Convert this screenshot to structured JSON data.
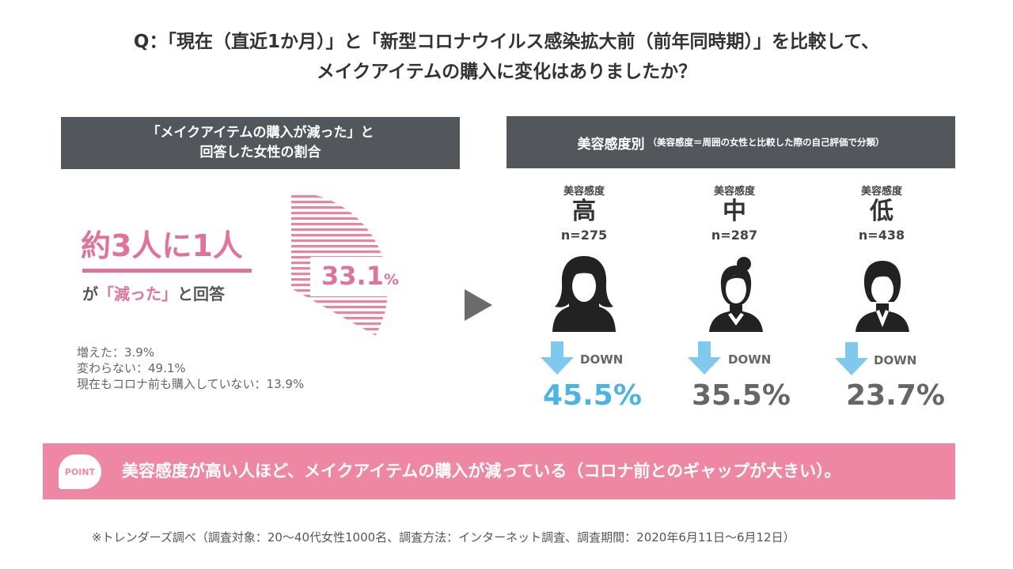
{
  "title": {
    "line1": "Q：「現在（直近1か月）」と「新型コロナウイルス感染拡大前（前年同時期）」を比較して、",
    "line2": "メイクアイテムの購入に変化はありましたか？"
  },
  "left_panel": {
    "header_line1": "「メイクアイテムの購入が減った」と",
    "header_line2": "回答した女性の割合",
    "headline": "約3人に1人",
    "answer_prefix": "が",
    "answer_highlight": "「減った」",
    "answer_suffix": "と回答",
    "percent_value": "33.1",
    "percent_unit": "%",
    "others": [
      "増えた：3.9%",
      "変わらない：49.1%",
      "現在もコロナ前も購入していない：13.9%"
    ]
  },
  "right_panel": {
    "header_main": "美容感度別",
    "header_sub": "（美容感度＝周囲の女性と比較した際の自己評価で分類）",
    "down_label": "DOWN",
    "groups": [
      {
        "group_label": "美容感度",
        "level": "高",
        "n": "n=275",
        "value": "45.5%",
        "color": "#4cb4e2"
      },
      {
        "group_label": "美容感度",
        "level": "中",
        "n": "n=287",
        "value": "35.5%",
        "color": "#666666"
      },
      {
        "group_label": "美容感度",
        "level": "低",
        "n": "n=438",
        "value": "23.7%",
        "color": "#666666"
      }
    ]
  },
  "point": {
    "badge": "POINT",
    "text": "美容感度が高い人ほど、メイクアイテムの購入が減っている（コロナ前とのギャップが大きい）。"
  },
  "footnote": "※トレンダーズ調べ（調査対象：20〜40代女性1000名、調査方法：インターネット調査、調査期間：2020年6月11日〜6月12日）",
  "chart_data": [
    {
      "type": "pie",
      "categories": [
        "減った",
        "増えた",
        "変わらない",
        "現在もコロナ前も購入していない"
      ],
      "values": [
        33.1,
        3.9,
        49.1,
        13.9
      ],
      "unit": "%",
      "highlight": "減った",
      "colors": {
        "highlight": "#e0739a"
      }
    },
    {
      "type": "table",
      "categories": [
        "高",
        "中",
        "低"
      ],
      "n": [
        275,
        287,
        438
      ],
      "values": [
        45.5,
        35.5,
        23.7
      ],
      "unit": "%"
    }
  ]
}
